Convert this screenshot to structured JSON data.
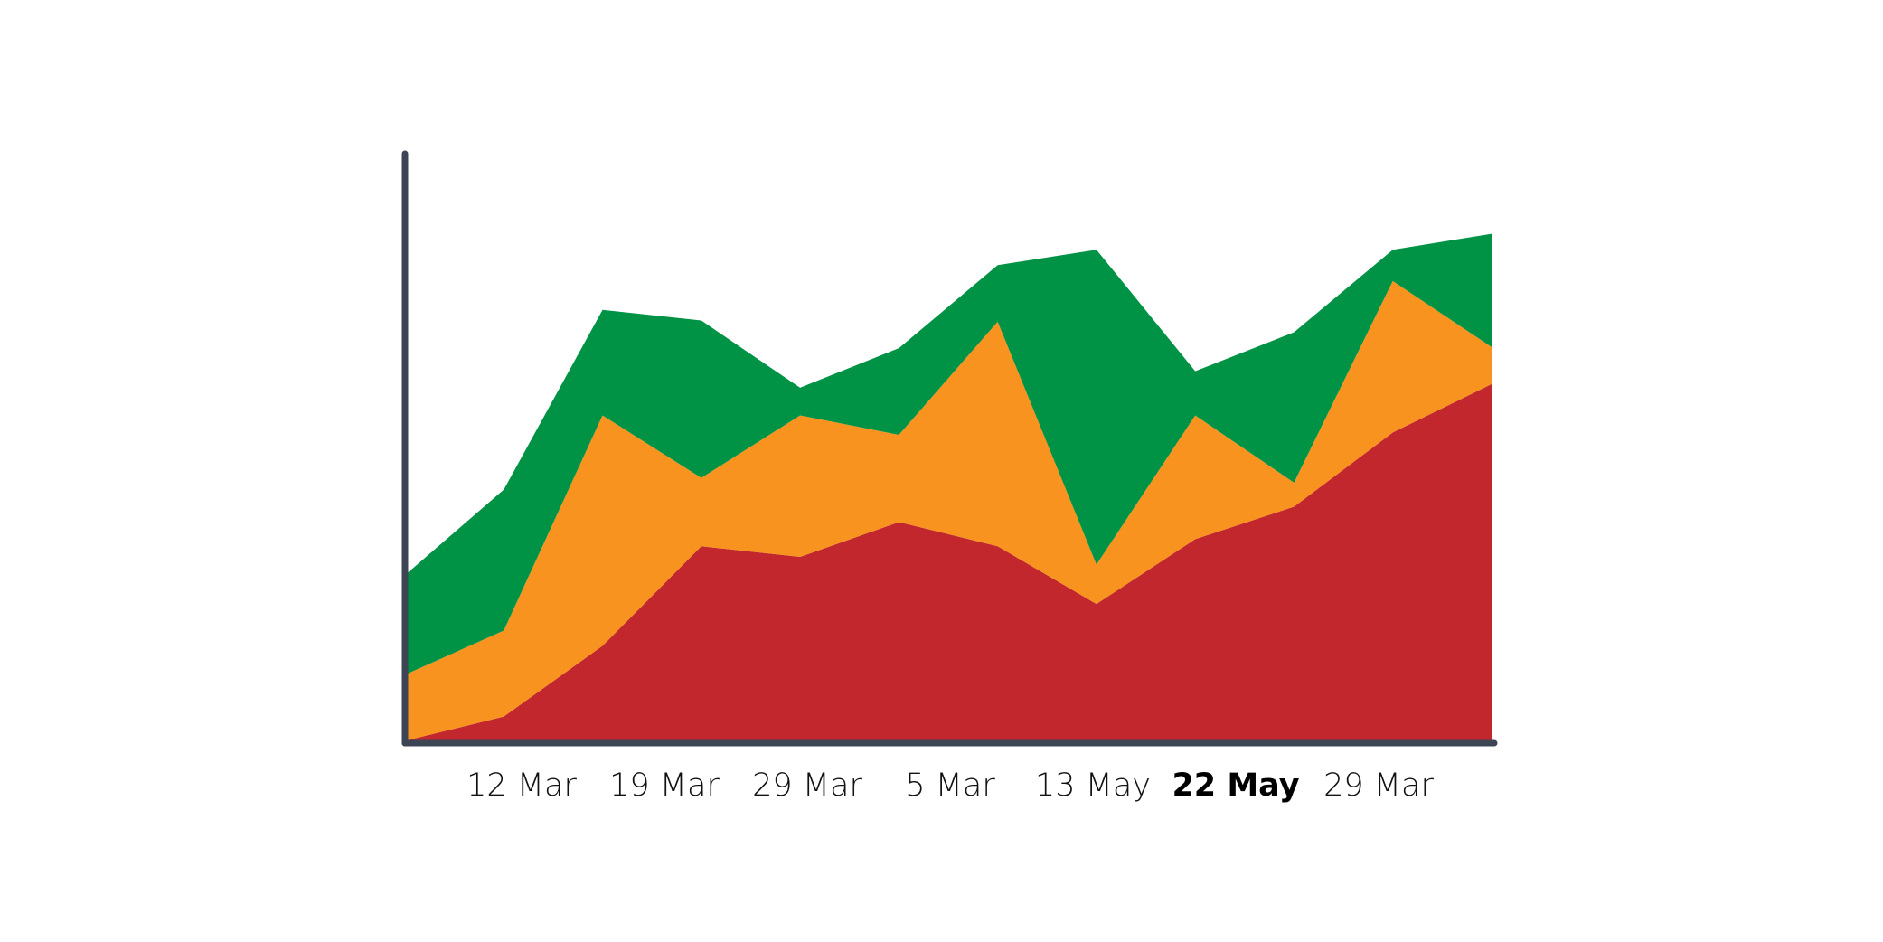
{
  "chart_data": {
    "type": "stacked_area",
    "categories": [
      null,
      null,
      null,
      null,
      null,
      null,
      null,
      null,
      null,
      null,
      null,
      null
    ],
    "series": [
      {
        "name": null,
        "color": "#c1272d",
        "values": [
          0.4,
          4.5,
          16.5,
          33.4,
          31.6,
          37.5,
          33.4,
          23.6,
          34.6,
          40.1,
          52.7,
          60.9
        ]
      },
      {
        "name": null,
        "color": "#f7931e",
        "values": [
          11.2,
          14.6,
          39.1,
          11.6,
          24.0,
          14.8,
          38.1,
          6.7,
          21.0,
          4.1,
          25.7,
          6.3
        ]
      },
      {
        "name": null,
        "color": "#009245",
        "values": [
          16.9,
          23.9,
          17.9,
          26.7,
          4.7,
          14.7,
          9.6,
          53.4,
          7.5,
          25.5,
          5.3,
          19.2
        ]
      }
    ],
    "ylim": [
      0,
      100
    ],
    "xtick_labels": [
      "12 Mar",
      "19 Mar",
      "29 Mar",
      "5 Mar",
      "13 May",
      "22 May",
      "29 Mar"
    ],
    "highlighted_label": 5,
    "axis_color": "#3d4454"
  }
}
